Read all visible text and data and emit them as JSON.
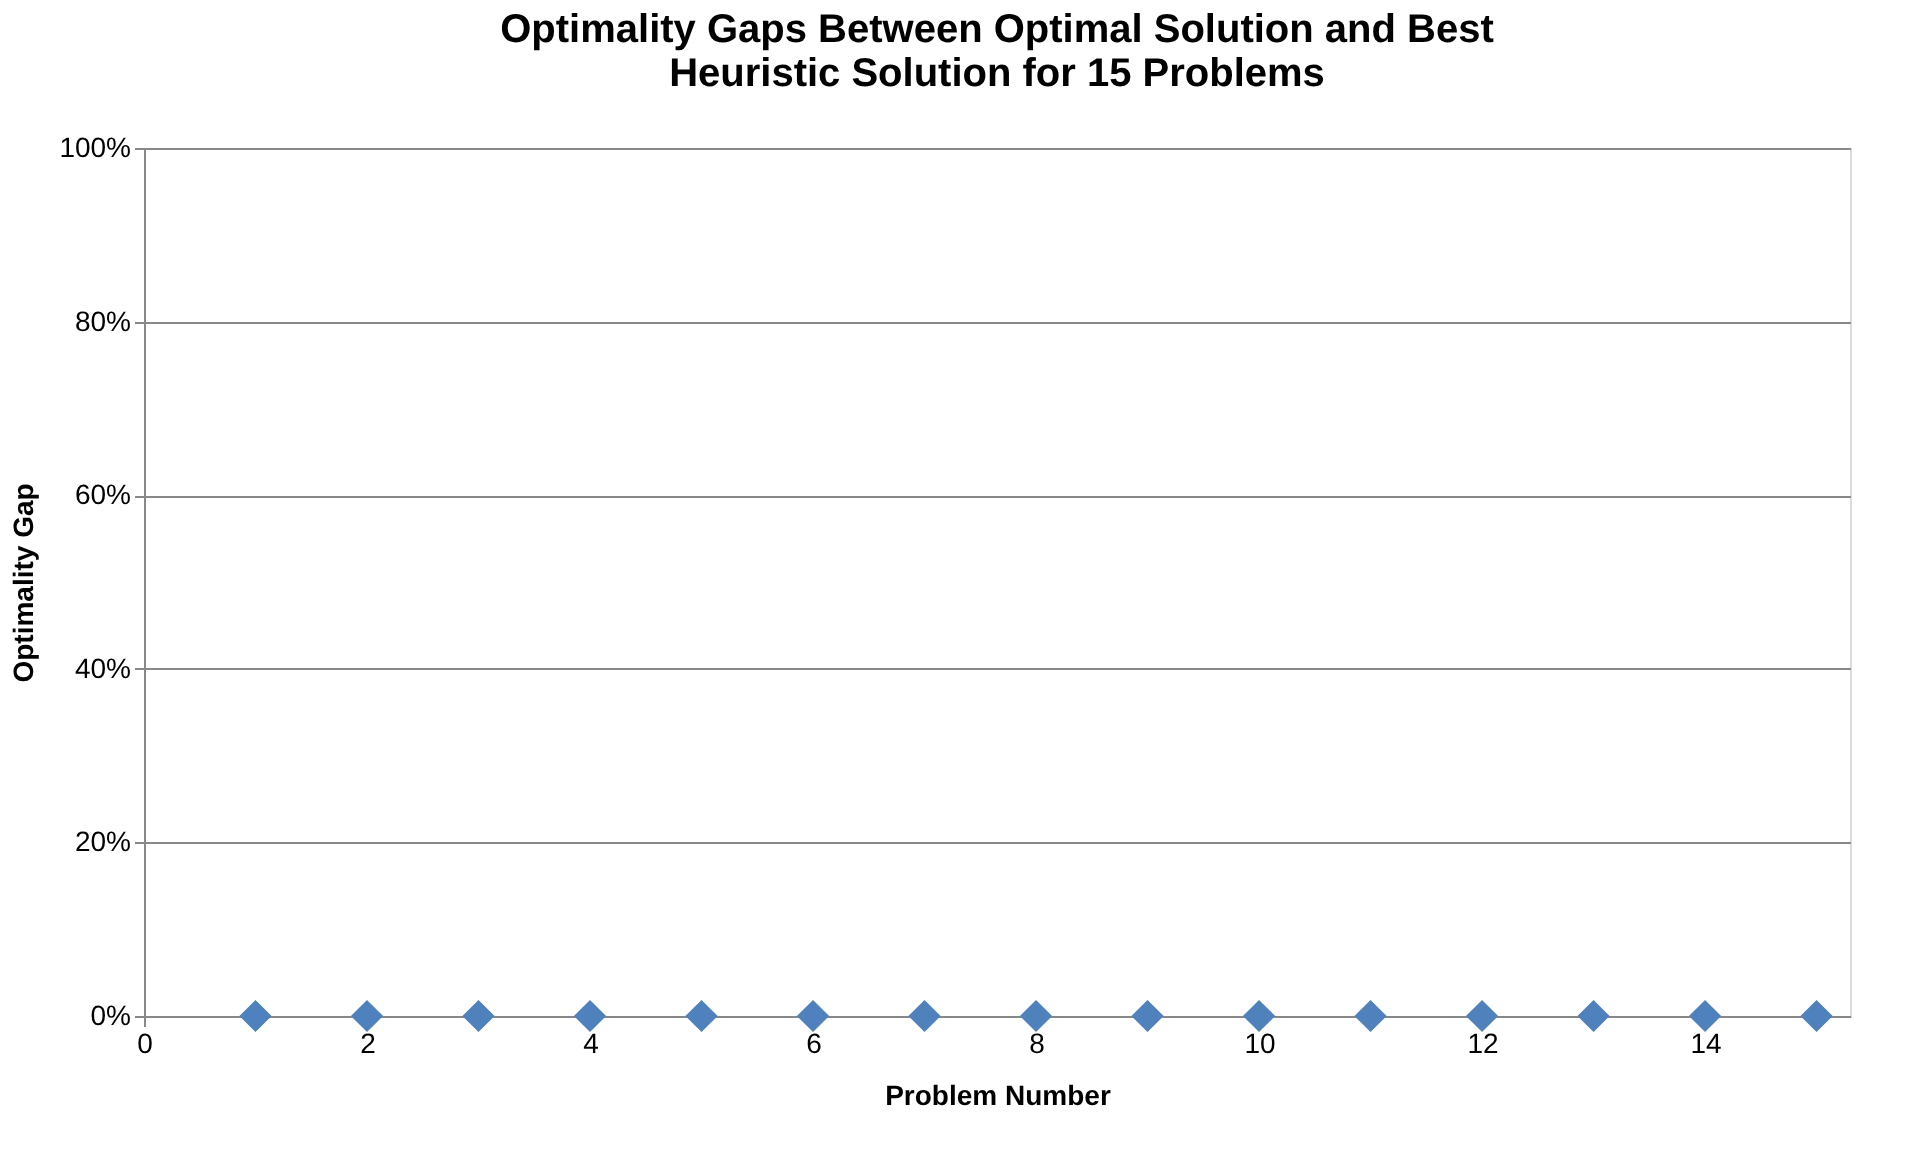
{
  "chart_data": {
    "type": "scatter",
    "title": [
      "Optimality Gaps Between Optimal Solution and Best",
      "Heuristic Solution for 15 Problems"
    ],
    "xlabel": "Problem Number",
    "ylabel": "Optimality Gap",
    "x": [
      1,
      2,
      3,
      4,
      5,
      6,
      7,
      8,
      9,
      10,
      11,
      12,
      13,
      14,
      15
    ],
    "series": [
      {
        "color": "#4f81bd",
        "values": [
          0,
          0,
          0,
          0,
          0,
          0,
          0,
          0,
          0,
          0,
          0,
          0,
          0,
          0,
          0
        ]
      }
    ],
    "xlim": [
      0,
      15.3
    ],
    "xticks": [
      0,
      2,
      4,
      6,
      8,
      10,
      12,
      14
    ],
    "ylim": [
      0,
      100
    ],
    "yticks": [
      {
        "value": 0,
        "label": "0%"
      },
      {
        "value": 20,
        "label": "20%"
      },
      {
        "value": 40,
        "label": "40%"
      },
      {
        "value": 60,
        "label": "60%"
      },
      {
        "value": 80,
        "label": "80%"
      },
      {
        "value": 100,
        "label": "100%"
      }
    ],
    "grid": "y",
    "marker": "diamond"
  }
}
